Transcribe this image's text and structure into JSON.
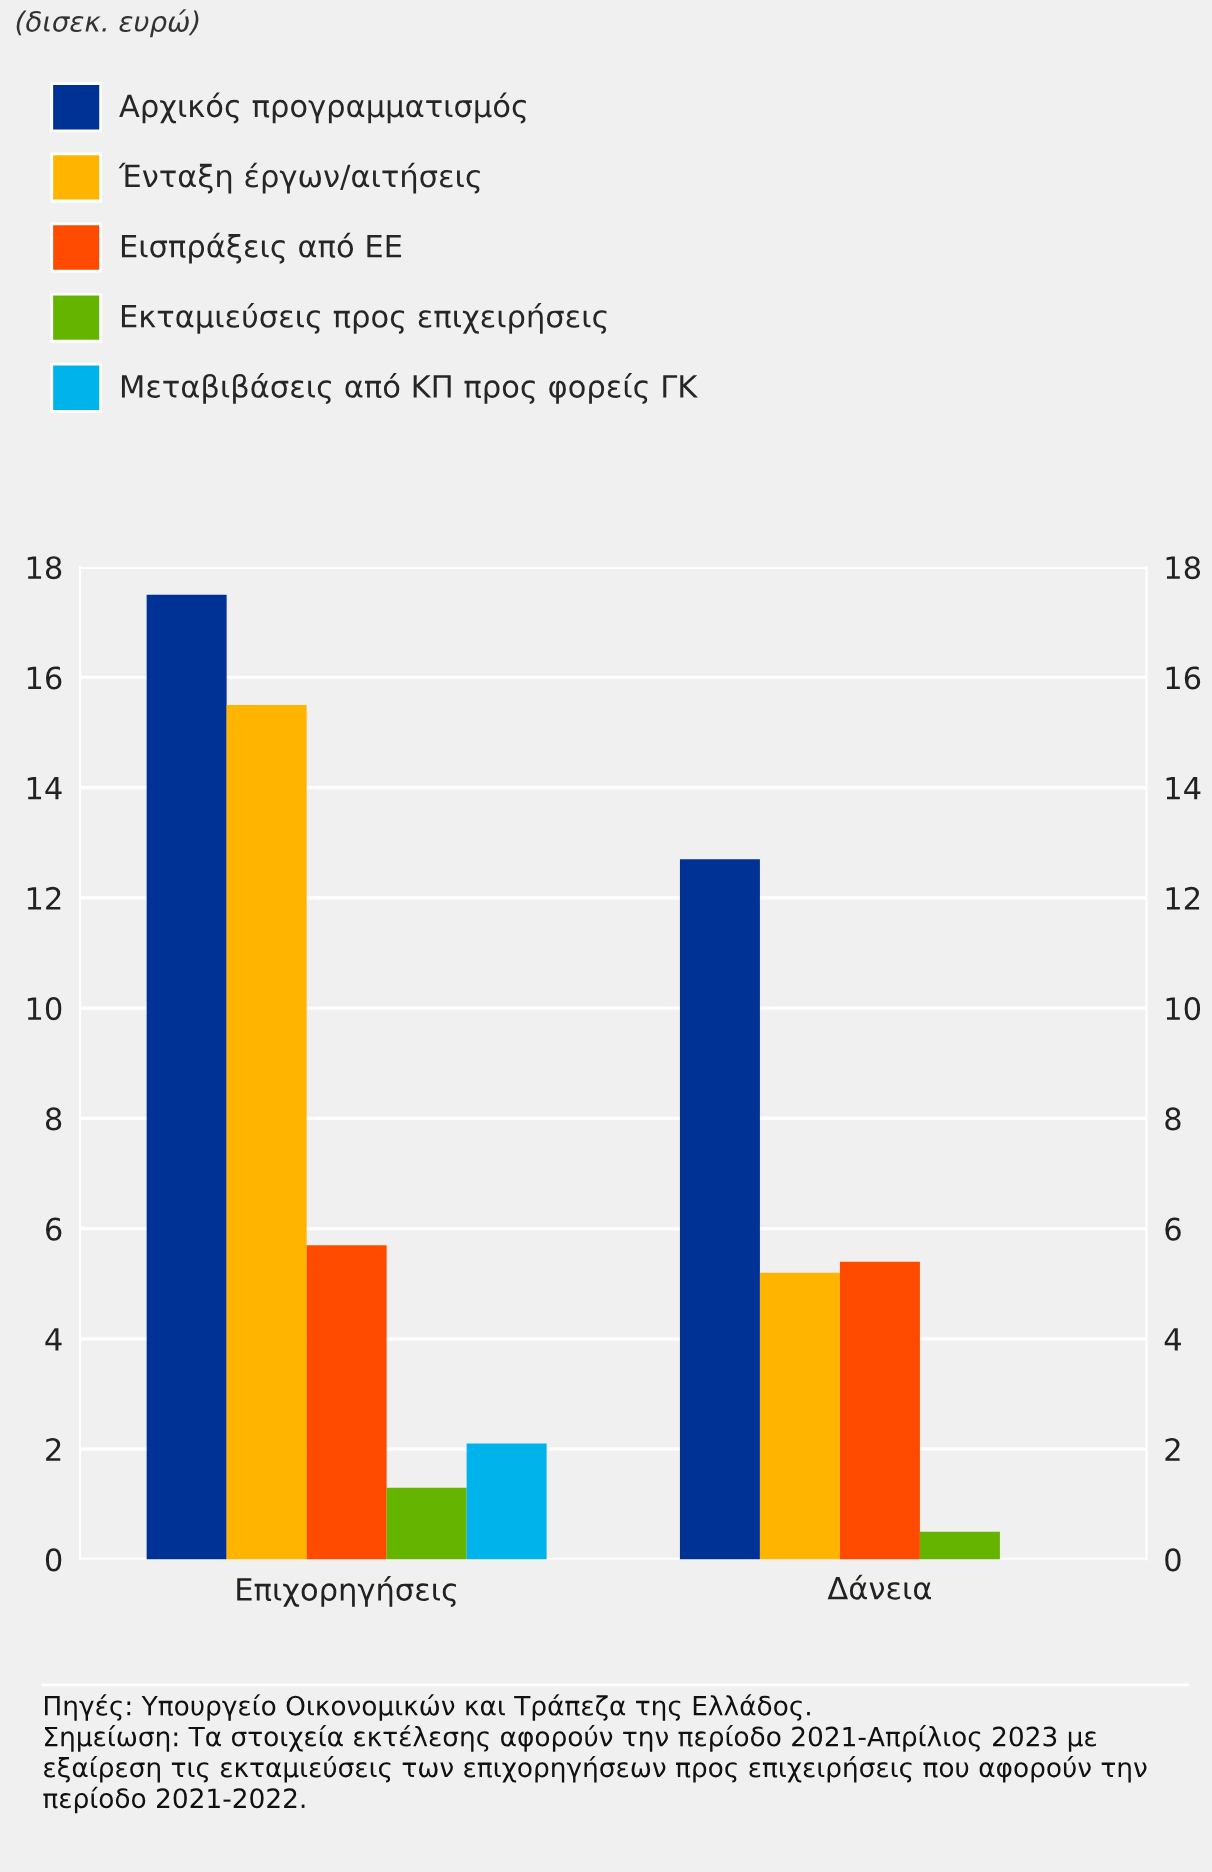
{
  "chart_data": {
    "type": "bar",
    "subtitle": "(δισεκ. ευρώ)",
    "categories": [
      "Επιχορηγήσεις",
      "Δάνεια"
    ],
    "series": [
      {
        "name": "Αρχικός προγραμματισμός",
        "color": "#003296",
        "values": [
          17.5,
          12.7
        ]
      },
      {
        "name": "Ένταξη έργων/αιτήσεις",
        "color": "#ffb400",
        "values": [
          15.5,
          5.2
        ]
      },
      {
        "name": "Εισπράξεις από ΕΕ",
        "color": "#ff4b00",
        "values": [
          5.7,
          5.4
        ]
      },
      {
        "name": "Εκταμιεύσεις προς επιχειρήσεις",
        "color": "#64b400",
        "values": [
          1.3,
          0.5
        ]
      },
      {
        "name": "Μεταβιβάσεις από ΚΠ προς φορείς ΓΚ",
        "color": "#00b4eb",
        "values": [
          2.1,
          null
        ]
      }
    ],
    "ylim": [
      0,
      18
    ],
    "yticks": [
      0,
      2,
      4,
      6,
      8,
      10,
      12,
      14,
      16,
      18
    ],
    "y2lim": [
      0,
      18
    ],
    "y2ticks": [
      0,
      2,
      4,
      6,
      8,
      10,
      12,
      14,
      16,
      18
    ],
    "grid": "y",
    "legend": "top",
    "annotations": [
      "Πηγές: Υπουργείο Οικονομικών και Τράπεζα της Ελλάδος.\nΣημείωση: Τα στοιχεία εκτέλεσης αφορούν την περίοδο 2021-Απρίλιος 2023 με εξαίρεση τις εκταμιεύσεις των επιχορηγήσεων προς επιχειρήσεις που αφορούν την περίοδο 2021-2022."
    ]
  }
}
